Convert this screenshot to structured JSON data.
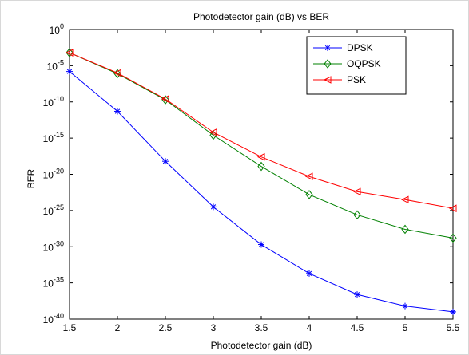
{
  "chart_data": {
    "type": "line",
    "title": "Photodetector gain (dB) vs BER",
    "xlabel": "Photodetector gain (dB)",
    "ylabel": "BER",
    "x": [
      1.5,
      2,
      2.5,
      3,
      3.5,
      4,
      4.5,
      5,
      5.5
    ],
    "x_ticks": [
      "1.5",
      "2",
      "2.5",
      "3",
      "3.5",
      "4",
      "4.5",
      "5",
      "5.5"
    ],
    "xlim": [
      1.5,
      5.5
    ],
    "y_scale": "log",
    "ylim_exponent": [
      -40,
      0
    ],
    "y_tick_base": "10",
    "y_tick_exponents": [
      "0",
      "-5",
      "-10",
      "-15",
      "-20",
      "-25",
      "-30",
      "-35",
      "-40"
    ],
    "grid": false,
    "legend_position": "top-right",
    "series": [
      {
        "name": "DPSK",
        "color": "#0000ff",
        "marker": "asterisk",
        "log10_values": [
          -5.8,
          -11.3,
          -18.2,
          -24.5,
          -29.7,
          -33.7,
          -36.6,
          -38.2,
          -39.0
        ]
      },
      {
        "name": "OQPSK",
        "color": "#008000",
        "marker": "diamond",
        "log10_values": [
          -3.2,
          -6.1,
          -9.7,
          -14.6,
          -18.9,
          -22.8,
          -25.6,
          -27.6,
          -28.8
        ]
      },
      {
        "name": "PSK",
        "color": "#ff0000",
        "marker": "triangle-left",
        "log10_values": [
          -3.2,
          -6.0,
          -9.6,
          -14.2,
          -17.6,
          -20.3,
          -22.4,
          -23.5,
          -24.7
        ]
      }
    ]
  }
}
